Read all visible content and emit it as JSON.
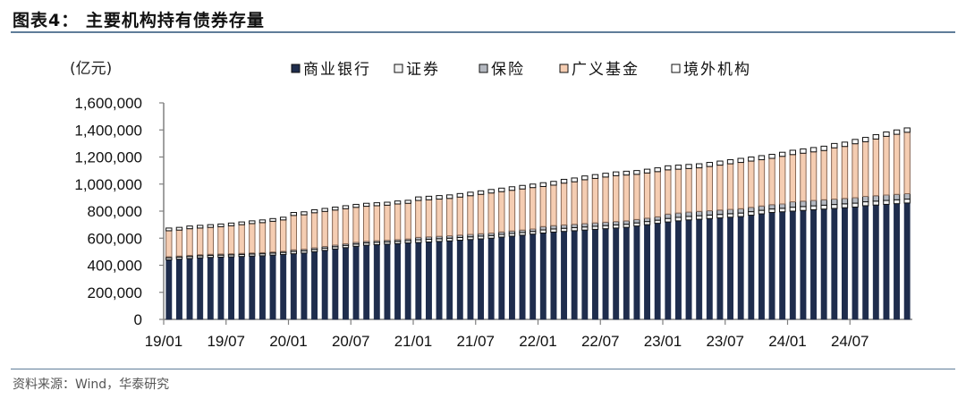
{
  "header": {
    "title": "图表4：  主要机构持有债券存量"
  },
  "footer": {
    "source": "资料来源：Wind，华泰研究"
  },
  "chart_data": {
    "type": "bar",
    "stacked": true,
    "unit_label": "(亿元)",
    "ylim": [
      0,
      1600000
    ],
    "y_ticks": [
      "0",
      "200,000",
      "400,000",
      "600,000",
      "800,000",
      "1,000,000",
      "1,200,000",
      "1,400,000",
      "1,600,000"
    ],
    "y_tick_values": [
      0,
      200000,
      400000,
      600000,
      800000,
      1000000,
      1200000,
      1400000,
      1600000
    ],
    "x_tick_labels": [
      "19/01",
      "19/07",
      "20/01",
      "20/07",
      "21/01",
      "21/07",
      "22/01",
      "22/07",
      "23/01",
      "23/07",
      "24/01",
      "24/07"
    ],
    "legend_position": "top",
    "grid": false,
    "categories": [
      "19/01",
      "19/02",
      "19/03",
      "19/04",
      "19/05",
      "19/06",
      "19/07",
      "19/08",
      "19/09",
      "19/10",
      "19/11",
      "19/12",
      "20/01",
      "20/02",
      "20/03",
      "20/04",
      "20/05",
      "20/06",
      "20/07",
      "20/08",
      "20/09",
      "20/10",
      "20/11",
      "20/12",
      "21/01",
      "21/02",
      "21/03",
      "21/04",
      "21/05",
      "21/06",
      "21/07",
      "21/08",
      "21/09",
      "21/10",
      "21/11",
      "21/12",
      "22/01",
      "22/02",
      "22/03",
      "22/04",
      "22/05",
      "22/06",
      "22/07",
      "22/08",
      "22/09",
      "22/10",
      "22/11",
      "22/12",
      "23/01",
      "23/02",
      "23/03",
      "23/04",
      "23/05",
      "23/06",
      "23/07",
      "23/08",
      "23/09",
      "23/10",
      "23/11",
      "23/12",
      "24/01",
      "24/02",
      "24/03",
      "24/04",
      "24/05",
      "24/06",
      "24/07",
      "24/08",
      "24/09",
      "24/10",
      "24/11",
      "24/12"
    ],
    "series": [
      {
        "name": "商业银行",
        "color": "#1f2d4d",
        "values": [
          440000,
          445000,
          450000,
          455000,
          458000,
          460000,
          462000,
          465000,
          468000,
          470000,
          475000,
          480000,
          485000,
          490000,
          500000,
          510000,
          520000,
          530000,
          540000,
          548000,
          552000,
          556000,
          560000,
          565000,
          568000,
          572000,
          576000,
          580000,
          585000,
          590000,
          595000,
          600000,
          608000,
          615000,
          622000,
          630000,
          638000,
          645000,
          650000,
          655000,
          660000,
          665000,
          670000,
          675000,
          680000,
          690000,
          700000,
          710000,
          720000,
          728000,
          735000,
          740000,
          745000,
          750000,
          755000,
          760000,
          770000,
          780000,
          790000,
          795000,
          800000,
          805000,
          810000,
          815000,
          820000,
          825000,
          830000,
          840000,
          845000,
          850000,
          855000,
          860000
        ]
      },
      {
        "name": "证券",
        "color": "#f2f2f2",
        "values": [
          15000,
          15000,
          15000,
          15000,
          15000,
          15000,
          15000,
          15000,
          15000,
          15000,
          15000,
          15000,
          17000,
          17000,
          17000,
          17000,
          17000,
          17000,
          17000,
          17000,
          17000,
          17000,
          17000,
          17000,
          20000,
          20000,
          20000,
          20000,
          20000,
          20000,
          20000,
          20000,
          20000,
          20000,
          20000,
          20000,
          23000,
          23000,
          23000,
          23000,
          23000,
          23000,
          23000,
          23000,
          23000,
          23000,
          23000,
          23000,
          26000,
          26000,
          26000,
          26000,
          26000,
          26000,
          26000,
          26000,
          26000,
          26000,
          26000,
          26000,
          29000,
          29000,
          29000,
          29000,
          29000,
          29000,
          29000,
          29000,
          29000,
          29000,
          29000,
          29000
        ]
      },
      {
        "name": "保险",
        "color": "#b4b8c0",
        "values": [
          8000,
          8000,
          8000,
          8000,
          8000,
          8000,
          8000,
          8000,
          8000,
          8000,
          8000,
          8000,
          12000,
          12000,
          12000,
          12000,
          12000,
          12000,
          12000,
          12000,
          12000,
          12000,
          12000,
          12000,
          18000,
          18000,
          18000,
          18000,
          18000,
          18000,
          18000,
          18000,
          18000,
          18000,
          18000,
          18000,
          25000,
          25000,
          25000,
          25000,
          25000,
          25000,
          25000,
          25000,
          25000,
          25000,
          25000,
          25000,
          32000,
          32000,
          32000,
          32000,
          32000,
          32000,
          32000,
          32000,
          32000,
          32000,
          32000,
          32000,
          40000,
          40000,
          40000,
          40000,
          40000,
          40000,
          40000,
          40000,
          40000,
          40000,
          40000,
          40000
        ]
      },
      {
        "name": "广义基金",
        "color": "#f5cdb2",
        "values": [
          192000,
          192000,
          197000,
          197000,
          199000,
          202000,
          207000,
          212000,
          217000,
          222000,
          227000,
          232000,
          254000,
          254000,
          259000,
          259000,
          259000,
          259000,
          259000,
          259000,
          259000,
          259000,
          264000,
          264000,
          273000,
          274000,
          275000,
          276000,
          281000,
          286000,
          291000,
          296000,
          298000,
          301000,
          304000,
          306000,
          296000,
          299000,
          309000,
          314000,
          324000,
          329000,
          334000,
          339000,
          339000,
          334000,
          334000,
          334000,
          327000,
          324000,
          322000,
          322000,
          327000,
          332000,
          337000,
          342000,
          342000,
          342000,
          342000,
          352000,
          349000,
          354000,
          359000,
          364000,
          379000,
          384000,
          399000,
          404000,
          419000,
          434000,
          444000,
          454000
        ]
      },
      {
        "name": "境外机构",
        "color": "#ffffff",
        "values": [
          20000,
          20000,
          20000,
          20000,
          20000,
          20000,
          20000,
          20000,
          20000,
          20000,
          20000,
          20000,
          22000,
          22000,
          22000,
          22000,
          22000,
          22000,
          22000,
          22000,
          22000,
          22000,
          22000,
          22000,
          26000,
          26000,
          26000,
          26000,
          26000,
          26000,
          26000,
          26000,
          26000,
          26000,
          26000,
          26000,
          28000,
          28000,
          28000,
          28000,
          28000,
          28000,
          28000,
          28000,
          28000,
          28000,
          28000,
          28000,
          30000,
          30000,
          30000,
          30000,
          30000,
          30000,
          30000,
          30000,
          30000,
          30000,
          30000,
          30000,
          32000,
          32000,
          32000,
          32000,
          32000,
          32000,
          32000,
          32000,
          32000,
          32000,
          32000,
          32000
        ]
      }
    ]
  }
}
